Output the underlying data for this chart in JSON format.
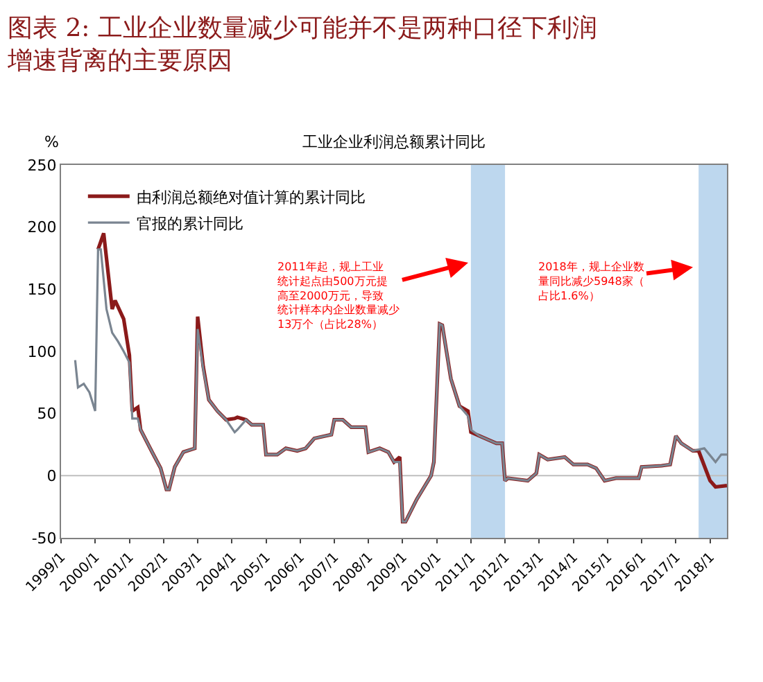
{
  "chart_data": {
    "type": "line",
    "title": "图表 2: 工业企业数量减少可能并不是两种口径下利润增速背离的主要原因",
    "subtitle": "工业企业利润总额累计同比",
    "ylabel": "%",
    "xlim": [
      "1999-01",
      "2018-07"
    ],
    "xticks": [
      {
        "value": "1999-01",
        "label": "1999/1"
      },
      {
        "value": "2000-01",
        "label": "2000/1"
      },
      {
        "value": "2001-01",
        "label": "2001/1"
      },
      {
        "value": "2002-01",
        "label": "2002/1"
      },
      {
        "value": "2003-01",
        "label": "2003/1"
      },
      {
        "value": "2004-01",
        "label": "2004/1"
      },
      {
        "value": "2005-01",
        "label": "2005/1"
      },
      {
        "value": "2006-01",
        "label": "2006/1"
      },
      {
        "value": "2007-01",
        "label": "2007/1"
      },
      {
        "value": "2008-01",
        "label": "2008/1"
      },
      {
        "value": "2009-01",
        "label": "2009/1"
      },
      {
        "value": "2010-01",
        "label": "2010/1"
      },
      {
        "value": "2011-01",
        "label": "2011/1"
      },
      {
        "value": "2012-01",
        "label": "2012/1"
      },
      {
        "value": "2013-01",
        "label": "2013/1"
      },
      {
        "value": "2014-01",
        "label": "2014/1"
      },
      {
        "value": "2015-01",
        "label": "2015/1"
      },
      {
        "value": "2016-01",
        "label": "2016/1"
      },
      {
        "value": "2017-01",
        "label": "2017/1"
      },
      {
        "value": "2018-01",
        "label": "2018/1"
      }
    ],
    "ylim": [
      -50,
      250
    ],
    "yticks": [
      -50,
      0,
      50,
      100,
      150,
      200,
      250
    ],
    "grid": false,
    "legend": "top left",
    "line_style": "solid",
    "series": [
      {
        "name": "由利润总额绝对值计算的累计同比",
        "color": "#8b1a1a",
        "x": [
          "2000-02",
          "2000-04",
          "2000-07",
          "2000-08",
          "2000-11",
          "2001-01",
          "2001-02",
          "2001-04",
          "2001-05",
          "2001-09",
          "2001-12",
          "2002-02",
          "2002-03",
          "2002-05",
          "2002-08",
          "2002-12",
          "2003-01",
          "2003-03",
          "2003-05",
          "2003-08",
          "2003-11",
          "2004-02",
          "2004-03",
          "2004-06",
          "2004-08",
          "2004-12",
          "2005-01",
          "2005-05",
          "2005-08",
          "2005-12",
          "2006-03",
          "2006-06",
          "2006-12",
          "2007-01",
          "2007-04",
          "2007-07",
          "2007-12",
          "2008-01",
          "2008-05",
          "2008-08",
          "2008-10",
          "2008-12",
          "2009-01",
          "2009-02",
          "2009-06",
          "2009-11",
          "2009-12",
          "2010-02",
          "2010-03",
          "2010-06",
          "2010-09",
          "2010-12",
          "2011-01",
          "2011-04",
          "2011-10",
          "2011-12",
          "2012-01",
          "2012-02",
          "2012-09",
          "2012-12",
          "2013-01",
          "2013-04",
          "2013-10",
          "2014-01",
          "2014-06",
          "2014-09",
          "2014-12",
          "2015-04",
          "2015-12",
          "2016-01",
          "2016-08",
          "2016-11",
          "2017-01",
          "2017-03",
          "2017-07",
          "2017-09",
          "2018-01",
          "2018-03",
          "2018-07"
        ],
        "values": [
          182,
          195,
          134,
          141,
          126,
          97,
          52,
          55,
          37,
          19,
          6,
          -11,
          -11,
          7,
          19,
          22,
          128,
          88,
          61,
          52,
          45,
          46,
          47,
          45,
          41,
          41,
          17,
          17,
          22,
          20,
          22,
          30,
          33,
          45,
          45,
          39,
          39,
          19,
          22,
          19,
          11,
          15,
          -37,
          -37,
          -19,
          0,
          11,
          122,
          121,
          78,
          56,
          52,
          35,
          32,
          26,
          26,
          -4,
          -2,
          -4,
          2,
          17,
          13,
          15,
          9,
          9,
          6,
          -4,
          -2,
          -2,
          7,
          8,
          9,
          32,
          26,
          20,
          20,
          -4,
          -9,
          -8
        ]
      },
      {
        "name": "官报的累计同比",
        "color": "#7a8591",
        "x": [
          "1999-06",
          "1999-07",
          "1999-09",
          "1999-11",
          "2000-01",
          "2000-02",
          "2000-03",
          "2000-05",
          "2000-07",
          "2000-09",
          "2000-11",
          "2001-01",
          "2001-02",
          "2001-04",
          "2001-05",
          "2001-09",
          "2001-12",
          "2002-02",
          "2002-03",
          "2002-05",
          "2002-08",
          "2002-12",
          "2003-01",
          "2003-03",
          "2003-05",
          "2003-08",
          "2003-11",
          "2004-02",
          "2004-03",
          "2004-06",
          "2004-08",
          "2004-12",
          "2005-01",
          "2005-05",
          "2005-08",
          "2005-12",
          "2006-03",
          "2006-06",
          "2006-12",
          "2007-01",
          "2007-04",
          "2007-07",
          "2007-12",
          "2008-01",
          "2008-05",
          "2008-08",
          "2008-10",
          "2008-12",
          "2009-01",
          "2009-02",
          "2009-06",
          "2009-11",
          "2009-12",
          "2010-02",
          "2010-03",
          "2010-06",
          "2010-09",
          "2010-12",
          "2011-01",
          "2011-04",
          "2011-10",
          "2011-12",
          "2012-01",
          "2012-02",
          "2012-09",
          "2012-12",
          "2013-01",
          "2013-04",
          "2013-10",
          "2014-01",
          "2014-06",
          "2014-09",
          "2014-12",
          "2015-04",
          "2015-12",
          "2016-01",
          "2016-08",
          "2016-11",
          "2017-01",
          "2017-03",
          "2017-07",
          "2017-11",
          "2018-03",
          "2018-05",
          "2018-07"
        ],
        "values": [
          93,
          71,
          74,
          67,
          52,
          182,
          182,
          134,
          115,
          108,
          100,
          91,
          46,
          46,
          37,
          19,
          6,
          -11,
          -11,
          7,
          19,
          22,
          118,
          86,
          61,
          52,
          45,
          35,
          37,
          45,
          41,
          41,
          17,
          17,
          22,
          20,
          22,
          30,
          33,
          45,
          45,
          39,
          39,
          19,
          22,
          19,
          11,
          11,
          -37,
          -37,
          -19,
          0,
          11,
          122,
          121,
          78,
          56,
          48,
          37,
          32,
          26,
          26,
          -4,
          -2,
          -4,
          2,
          17,
          13,
          15,
          9,
          9,
          6,
          -4,
          -2,
          -2,
          7,
          8,
          9,
          32,
          26,
          20,
          22,
          11,
          17,
          17
        ]
      }
    ],
    "ref_lines": [
      {
        "axis": "y",
        "value": 0,
        "color": "#bfbfbf"
      }
    ],
    "bands": [
      {
        "axis": "x",
        "from": "2011-01",
        "to": "2012-01",
        "color": "#bdd7ee"
      },
      {
        "axis": "x",
        "from": "2017-09",
        "to": "2018-07",
        "color": "#bdd7ee"
      }
    ],
    "annotations": [
      {
        "text": "2011年起，规上工业统计起点由500万元提高至2000万元，导致统计样本内企业数量减少13万个（占比28%）",
        "x": "2011-01",
        "y": 172
      },
      {
        "text": "2018年，规上企业数量同比减少5948家（占比1.6%）",
        "x": "2017-08",
        "y": 168
      }
    ]
  }
}
